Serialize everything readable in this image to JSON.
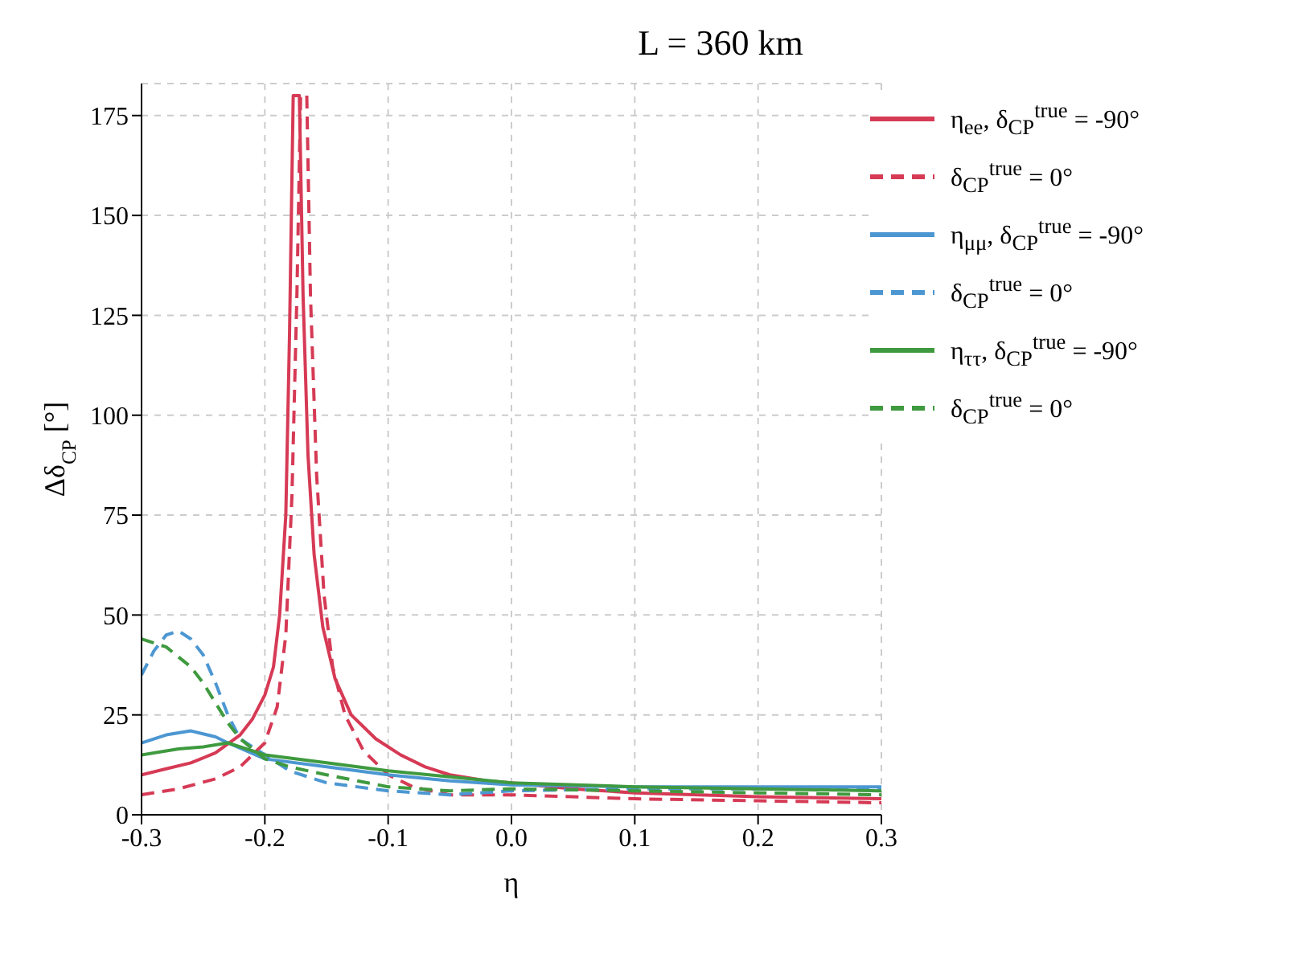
{
  "chart_data": {
    "type": "line",
    "title": "L = 360 km",
    "xlabel": "η",
    "ylabel": "Δδ$_{CP}$ [°]",
    "xlim": [
      -0.3,
      0.3
    ],
    "xticks": [
      -0.3,
      -0.2,
      -0.1,
      {
        "value": 0,
        "label": "0.0"
      },
      0.1,
      0.2,
      0.3
    ],
    "ylim": [
      0,
      183
    ],
    "yticks": [
      0,
      25,
      50,
      75,
      100,
      125,
      150,
      175
    ],
    "grid": true,
    "legend": "top right",
    "marker": "none",
    "series": [
      {
        "name": "η$_{ee}$, δ$_{CP}$$^{true}$ = -90°",
        "color": "#d63a55",
        "line_style": "solid",
        "x": [
          -0.3,
          -0.28,
          -0.26,
          -0.24,
          -0.22,
          -0.21,
          -0.2,
          -0.193,
          -0.188,
          -0.183,
          -0.18,
          -0.177,
          -0.172,
          -0.169,
          -0.165,
          -0.16,
          -0.153,
          -0.143,
          -0.13,
          -0.11,
          -0.09,
          -0.07,
          -0.05,
          -0.02,
          0,
          0.05,
          0.1,
          0.2,
          0.3
        ],
        "values": [
          10,
          11.5,
          13,
          15.5,
          20,
          24,
          30,
          37,
          50,
          75,
          120,
          180,
          180,
          130,
          90,
          65,
          47,
          34,
          25,
          19,
          15,
          12,
          10,
          8.5,
          8,
          6.5,
          5.5,
          4.5,
          4
        ]
      },
      {
        "name": "δ$_{CP}$$^{true}$ = 0°",
        "color": "#d63a55",
        "line_style": "dashed",
        "x": [
          -0.3,
          -0.27,
          -0.24,
          -0.22,
          -0.2,
          -0.19,
          -0.183,
          -0.178,
          -0.174,
          -0.171,
          -0.166,
          -0.163,
          -0.158,
          -0.152,
          -0.145,
          -0.135,
          -0.12,
          -0.1,
          -0.08,
          -0.05,
          0,
          0.1,
          0.2,
          0.3
        ],
        "values": [
          5,
          6.5,
          9,
          12,
          18,
          27,
          45,
          80,
          130,
          180,
          180,
          130,
          85,
          55,
          37,
          25,
          16,
          10,
          7,
          5,
          5,
          4,
          3.5,
          3
        ]
      },
      {
        "name": "η$_{μμ}$, δ$_{CP}$$^{true}$ = -90°",
        "color": "#4c97d2",
        "line_style": "solid",
        "x": [
          -0.3,
          -0.28,
          -0.26,
          -0.24,
          -0.23,
          -0.2,
          -0.15,
          -0.1,
          -0.05,
          0,
          0.1,
          0.2,
          0.3
        ],
        "values": [
          18,
          20,
          21,
          19.5,
          18,
          14,
          12,
          10,
          8.5,
          7.5,
          7,
          7,
          7
        ]
      },
      {
        "name": "δ$_{CP}$$^{true}$ = 0°",
        "color": "#4c97d2",
        "line_style": "dashed",
        "x": [
          -0.3,
          -0.29,
          -0.28,
          -0.27,
          -0.26,
          -0.25,
          -0.24,
          -0.23,
          -0.22,
          -0.2,
          -0.18,
          -0.15,
          -0.1,
          -0.05,
          0,
          0.1,
          0.2,
          0.3
        ],
        "values": [
          35,
          41,
          45,
          46,
          44,
          40,
          33,
          25,
          19,
          15,
          11,
          8,
          6,
          5,
          6,
          6.5,
          6.5,
          6.5
        ]
      },
      {
        "name": "η$_{ττ}$, δ$_{CP}$$^{true}$ = -90°",
        "color": "#3f9a3f",
        "line_style": "solid",
        "x": [
          -0.3,
          -0.27,
          -0.25,
          -0.23,
          -0.2,
          -0.15,
          -0.1,
          -0.05,
          0,
          0.1,
          0.2,
          0.3
        ],
        "values": [
          15,
          16.5,
          17,
          18,
          15,
          13,
          11,
          9.5,
          8,
          7,
          6.5,
          6
        ]
      },
      {
        "name": "δ$_{CP}$$^{true}$ = 0°",
        "color": "#3f9a3f",
        "line_style": "dashed",
        "x": [
          -0.3,
          -0.29,
          -0.28,
          -0.26,
          -0.25,
          -0.24,
          -0.23,
          -0.22,
          -0.2,
          -0.18,
          -0.15,
          -0.1,
          -0.05,
          0,
          0.1,
          0.2,
          0.3
        ],
        "values": [
          44,
          43,
          42,
          37,
          33,
          28,
          23,
          19,
          14,
          12,
          10,
          7,
          6,
          6.5,
          6,
          5.5,
          5
        ]
      }
    ]
  }
}
